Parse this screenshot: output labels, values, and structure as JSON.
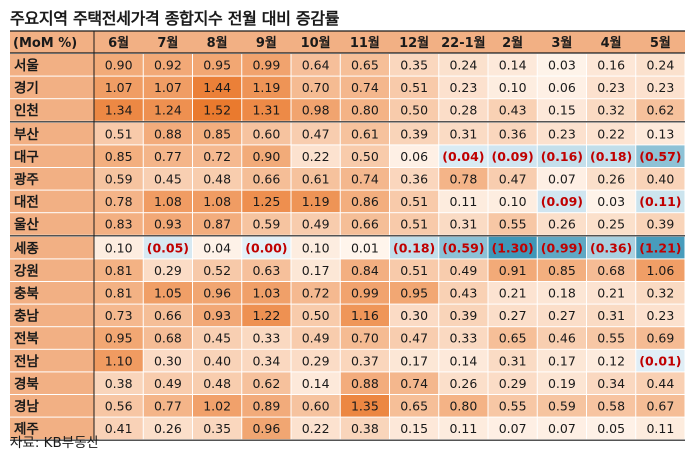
{
  "title": "주요지역 주택전세가격 종합지수 전월 대비 증감률",
  "source": "자료: KB부동산",
  "chart_data": {
    "type": "heatmap",
    "row_header": "(MoM %)",
    "columns": [
      "6월",
      "7월",
      "8월",
      "9월",
      "10월",
      "11월",
      "12월",
      "22-1월",
      "2월",
      "3월",
      "4월",
      "5월"
    ],
    "groups": [
      {
        "rows": [
          {
            "region": "서울",
            "values": [
              0.9,
              0.92,
              0.95,
              0.99,
              0.64,
              0.65,
              0.35,
              0.24,
              0.14,
              0.03,
              0.16,
              0.24
            ]
          },
          {
            "region": "경기",
            "values": [
              1.07,
              1.07,
              1.44,
              1.19,
              0.7,
              0.74,
              0.51,
              0.23,
              0.1,
              0.06,
              0.23,
              0.23
            ]
          },
          {
            "region": "인천",
            "values": [
              1.34,
              1.24,
              1.52,
              1.31,
              0.98,
              0.8,
              0.5,
              0.28,
              0.43,
              0.15,
              0.32,
              0.62
            ]
          }
        ]
      },
      {
        "rows": [
          {
            "region": "부산",
            "values": [
              0.51,
              0.88,
              0.85,
              0.6,
              0.47,
              0.61,
              0.39,
              0.31,
              0.36,
              0.23,
              0.22,
              0.13
            ]
          },
          {
            "region": "대구",
            "values": [
              0.85,
              0.77,
              0.72,
              0.9,
              0.22,
              0.5,
              0.06,
              -0.04,
              -0.09,
              -0.16,
              -0.18,
              -0.57
            ]
          },
          {
            "region": "광주",
            "values": [
              0.59,
              0.45,
              0.48,
              0.66,
              0.61,
              0.74,
              0.36,
              0.78,
              0.47,
              0.07,
              0.26,
              0.4
            ]
          },
          {
            "region": "대전",
            "values": [
              0.78,
              1.08,
              1.08,
              1.25,
              1.19,
              0.86,
              0.51,
              0.11,
              0.1,
              -0.09,
              0.03,
              -0.11
            ]
          },
          {
            "region": "울산",
            "values": [
              0.83,
              0.93,
              0.87,
              0.59,
              0.49,
              0.66,
              0.51,
              0.31,
              0.55,
              0.26,
              0.25,
              0.39
            ]
          }
        ]
      },
      {
        "rows": [
          {
            "region": "세종",
            "values": [
              0.1,
              -0.05,
              0.04,
              0.0,
              0.1,
              0.01,
              -0.18,
              -0.59,
              -1.3,
              -0.99,
              -0.36,
              -1.21
            ],
            "negative_zero_cols": [
              3
            ]
          },
          {
            "region": "강원",
            "values": [
              0.81,
              0.29,
              0.52,
              0.63,
              0.17,
              0.84,
              0.51,
              0.49,
              0.91,
              0.85,
              0.68,
              1.06
            ]
          },
          {
            "region": "충북",
            "values": [
              0.81,
              1.05,
              0.96,
              1.03,
              0.72,
              0.99,
              0.95,
              0.43,
              0.21,
              0.18,
              0.21,
              0.32
            ]
          },
          {
            "region": "충남",
            "values": [
              0.73,
              0.66,
              0.93,
              1.22,
              0.5,
              1.16,
              0.3,
              0.39,
              0.27,
              0.27,
              0.31,
              0.23
            ]
          },
          {
            "region": "전북",
            "values": [
              0.95,
              0.68,
              0.45,
              0.33,
              0.49,
              0.7,
              0.47,
              0.33,
              0.65,
              0.46,
              0.55,
              0.69
            ]
          },
          {
            "region": "전남",
            "values": [
              1.1,
              0.3,
              0.4,
              0.34,
              0.29,
              0.37,
              0.17,
              0.14,
              0.31,
              0.17,
              0.12,
              -0.01
            ]
          },
          {
            "region": "경북",
            "values": [
              0.38,
              0.49,
              0.48,
              0.62,
              0.14,
              0.88,
              0.74,
              0.26,
              0.29,
              0.19,
              0.34,
              0.44
            ]
          },
          {
            "region": "경남",
            "values": [
              0.56,
              0.77,
              1.02,
              0.89,
              0.6,
              1.35,
              0.65,
              0.8,
              0.55,
              0.59,
              0.58,
              0.67
            ]
          },
          {
            "region": "제주",
            "values": [
              0.41,
              0.26,
              0.35,
              0.96,
              0.22,
              0.38,
              0.15,
              0.11,
              0.07,
              0.07,
              0.05,
              0.11
            ]
          }
        ]
      }
    ],
    "negative_format": "parentheses",
    "colors": {
      "header_bg": "#f2b084",
      "header_text": "#1a1a1a",
      "label_bg": "#f2b084",
      "label_text": "#1a1a1a",
      "positive_low": "#fff6ee",
      "positive_high": "#ea7a2e",
      "negative_low": "#e3f0f7",
      "negative_high": "#3f97b8",
      "negative_text": "#c00000",
      "text": "#1a1a1a",
      "grid": "#ffffff",
      "group_border": "#1a1a1a"
    }
  }
}
